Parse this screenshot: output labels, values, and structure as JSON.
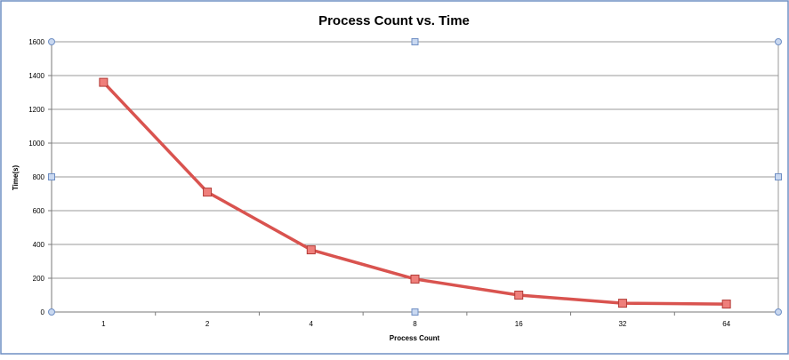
{
  "chart_data": {
    "type": "line",
    "title": "Process Count vs. Time",
    "xlabel": "Process Count",
    "ylabel": "Time(s)",
    "categories": [
      "1",
      "2",
      "4",
      "8",
      "16",
      "32",
      "64"
    ],
    "series": [
      {
        "values": [
          1360,
          710,
          368,
          195,
          100,
          52,
          47
        ],
        "color": "#d9534f",
        "marker": "square"
      }
    ],
    "ylim": [
      0,
      1600
    ],
    "yticks": [
      0,
      200,
      400,
      600,
      800,
      1000,
      1200,
      1400,
      1600
    ],
    "grid": true,
    "legend": "none"
  },
  "colors": {
    "frame": "#6f8fc4",
    "handle_fill": "#c9d8f0",
    "grid": "#9a9a9a",
    "axis": "#7a7a7a"
  }
}
